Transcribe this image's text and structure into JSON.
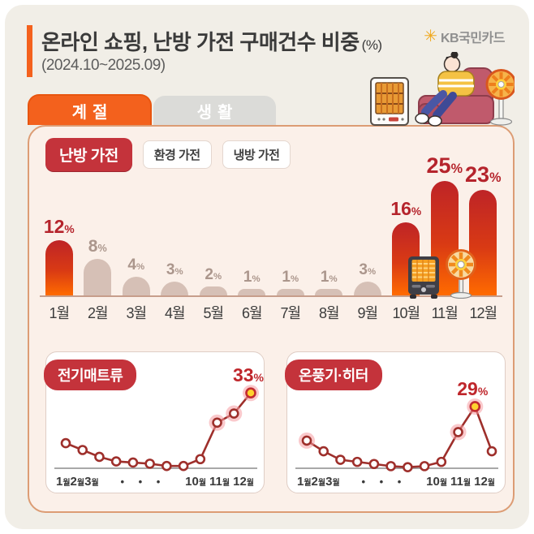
{
  "header": {
    "title": "온라인 쇼핑, 난방 가전 구매건수 비중",
    "title_unit": "(%)",
    "subtitle": "(2024.10~2025.09)",
    "logo_text": "KB국민카드"
  },
  "icons": {
    "kb_star": "✳"
  },
  "tabs": [
    {
      "label": "계절",
      "active": true
    },
    {
      "label": "생활",
      "active": false
    }
  ],
  "filters": [
    {
      "label": "난방 가전",
      "active": true
    },
    {
      "label": "환경 가전",
      "active": false
    },
    {
      "label": "냉방 가전",
      "active": false
    }
  ],
  "colors": {
    "accent_orange": "#F3611D",
    "panel_border": "#DC9C74",
    "panel_bg": "#FBF0E9",
    "bar_red_top": "#BE2427",
    "bar_red_bottom": "#FF6B00",
    "bar_beige": "#D6C0B6",
    "badge_red": "#C4333B",
    "line_red": "#9E2F2B",
    "highlight_ring_pink": "#F59CA3",
    "peak_yellow": "#FFD22E",
    "canvas_bg": "#F1EEE7"
  },
  "chart_data": [
    {
      "type": "bar",
      "title": "난방 가전",
      "unit": "%",
      "categories": [
        "1월",
        "2월",
        "3월",
        "4월",
        "5월",
        "6월",
        "7월",
        "8월",
        "9월",
        "10월",
        "11월",
        "12월"
      ],
      "values": [
        12,
        8,
        4,
        3,
        2,
        1,
        1,
        1,
        3,
        16,
        25,
        23
      ],
      "highlight_indices": [
        0,
        9,
        10,
        11
      ],
      "ylim": [
        0,
        27
      ],
      "grid": false
    },
    {
      "type": "line",
      "title": "전기매트류",
      "unit": "%",
      "x": [
        "1월",
        "2월",
        "3월",
        "4월",
        "5월",
        "6월",
        "7월",
        "8월",
        "9월",
        "10월",
        "11월",
        "12월"
      ],
      "values": [
        11,
        8,
        5,
        3,
        2.5,
        2,
        1,
        1,
        4,
        20,
        24,
        33
      ],
      "peak_value": 33,
      "peak_index": 11,
      "ring_indices": [
        9,
        10,
        11
      ],
      "yellow_index": 11,
      "ylim": [
        0,
        34.5
      ],
      "grid": false
    },
    {
      "type": "line",
      "title": "온풍기·히터",
      "unit": "%",
      "x": [
        "1월",
        "2월",
        "3월",
        "4월",
        "5월",
        "6월",
        "7월",
        "8월",
        "9월",
        "10월",
        "11월",
        "12월"
      ],
      "values": [
        13,
        8,
        4,
        3,
        2,
        1,
        0.5,
        1,
        3,
        17,
        29,
        8
      ],
      "peak_value": 29,
      "peak_index": 10,
      "ring_indices": [
        0,
        9,
        10
      ],
      "yellow_index": 10,
      "ylim": [
        0,
        37
      ],
      "grid": false
    }
  ],
  "line_axis": {
    "left_ticks": [
      "1월",
      "2월",
      "3월"
    ],
    "dots": "• • •",
    "right_ticks": [
      "10월",
      "11월",
      "12월"
    ]
  }
}
